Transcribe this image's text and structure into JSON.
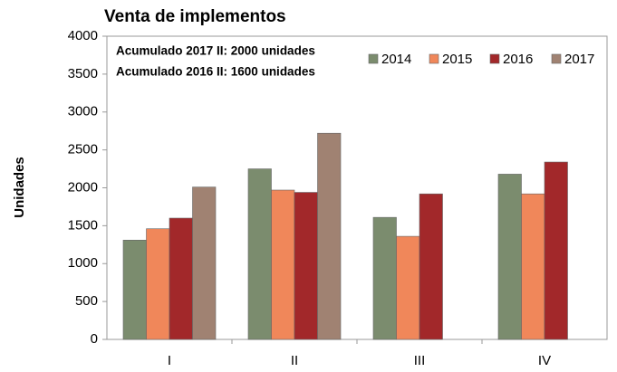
{
  "chart_data": {
    "type": "bar",
    "title": "Venta de implementos",
    "y_label": "Unidades",
    "annotations": [
      "Acumulado 2017 II: 2000 unidades",
      "Acumulado 2016 II: 1600 unidades"
    ],
    "categories": [
      "I",
      "II",
      "III",
      "IV"
    ],
    "series": [
      {
        "name": "2014",
        "color": "#7b8c6e",
        "values": [
          1310,
          2250,
          1610,
          2180
        ]
      },
      {
        "name": "2015",
        "color": "#f0875a",
        "values": [
          1460,
          1970,
          1360,
          1920
        ]
      },
      {
        "name": "2016",
        "color": "#a2282a",
        "values": [
          1600,
          1940,
          1920,
          2340
        ]
      },
      {
        "name": "2017",
        "color": "#a08272",
        "values": [
          2010,
          2720,
          null,
          null
        ]
      }
    ],
    "ylim": [
      0,
      4000
    ],
    "yticks": [
      0,
      500,
      1000,
      1500,
      2000,
      2500,
      3000,
      3500,
      4000
    ],
    "grid": false,
    "legend": "top-right"
  }
}
